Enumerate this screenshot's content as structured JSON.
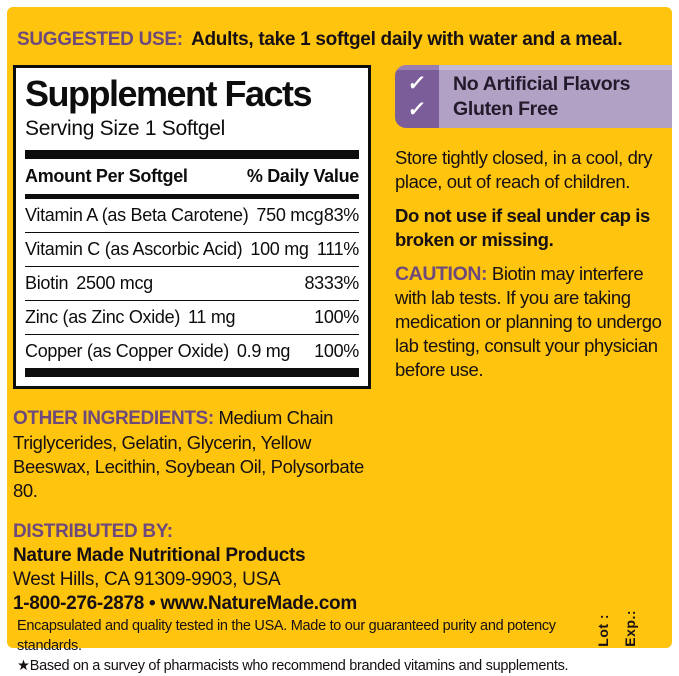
{
  "colors": {
    "label_background": "#ffc40e",
    "accent_purple": "#6d4a7b",
    "badge_dark_purple": "#7b5d99",
    "badge_light_purple": "#b1a2c5",
    "panel_border": "#0d0d0d"
  },
  "suggested_use": {
    "label": "SUGGESTED USE:",
    "text": "Adults, take 1 softgel daily with water and a meal."
  },
  "supplement_facts": {
    "title": "Supplement Facts",
    "serving_size": "Serving Size 1 Softgel",
    "columns": {
      "amount": "Amount Per Softgel",
      "daily_value": "% Daily Value"
    },
    "rows": [
      {
        "name": "Vitamin A (as Beta Carotene)",
        "amount": "750 mcg",
        "daily_value": "83%"
      },
      {
        "name": "Vitamin C (as Ascorbic Acid)",
        "amount": "100 mg",
        "daily_value": "111%"
      },
      {
        "name": "Biotin",
        "amount": "2500 mcg",
        "daily_value": "8333%"
      },
      {
        "name": "Zinc (as Zinc Oxide)",
        "amount": "11 mg",
        "daily_value": "100%"
      },
      {
        "name": "Copper (as Copper Oxide)",
        "amount": "0.9 mg",
        "daily_value": "100%"
      }
    ]
  },
  "badge": {
    "check_icon": "✓",
    "claims": [
      "No Artificial Flavors",
      "Gluten Free"
    ]
  },
  "storage_text": "Store tightly closed, in a cool, dry place, out of reach of children.",
  "seal_warning": "Do not use if seal under cap is broken or missing.",
  "caution": {
    "label": "CAUTION:",
    "text": "Biotin may interfere with lab tests. If you are taking medication or planning to undergo lab testing, consult your physician before use."
  },
  "other_ingredients": {
    "label": "OTHER INGREDIENTS:",
    "text": "Medium Chain Triglycerides, Gelatin, Glycerin, Yellow Beeswax, Lecithin, Soybean Oil, Polysorbate 80."
  },
  "distributed_by": {
    "label": "DISTRIBUTED BY:",
    "company": "Nature Made Nutritional Products",
    "address": "West Hills, CA 91309-9903, USA",
    "contact": "1-800-276-2878 • www.NatureMade.com"
  },
  "footer": {
    "line1": "Encapsulated and quality tested in the USA. Made to our guaranteed purity and potency standards.",
    "line2": "★Based on a survey of pharmacists who recommend branded vitamins and supplements.",
    "lot_label": "Lot :",
    "exp_label": "Exp.:"
  }
}
